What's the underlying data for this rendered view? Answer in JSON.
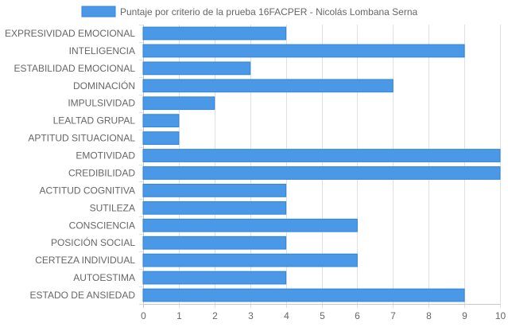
{
  "colors": {
    "bar_fill": "#4a98e6",
    "bar_stroke": "#2f86dc",
    "grid": "#e0e0e0",
    "axis": "#c8c8c8",
    "text": "#666666"
  },
  "chart_data": {
    "type": "bar",
    "orientation": "horizontal",
    "title": "",
    "xlabel": "",
    "ylabel": "",
    "xlim": [
      0,
      10
    ],
    "x_ticks": [
      "0",
      "1",
      "2",
      "3",
      "4",
      "5",
      "6",
      "7",
      "8",
      "9",
      "10"
    ],
    "grid": true,
    "legend_position": "top",
    "categories": [
      "EXPRESIVIDAD EMOCIONAL",
      "INTELIGENCIA",
      "ESTABILIDAD EMOCIONAL",
      "DOMINACIÓN",
      "IMPULSIVIDAD",
      "LEALTAD GRUPAL",
      "APTITUD SITUACIONAL",
      "EMOTIVIDAD",
      "CREDIBILIDAD",
      "ACTITUD COGNITIVA",
      "SUTILEZA",
      "CONSCIENCIA",
      "POSICIÓN SOCIAL",
      "CERTEZA INDIVIDUAL",
      "AUTOESTIMA",
      "ESTADO DE ANSIEDAD"
    ],
    "series": [
      {
        "name": "Puntaje por criterio de la prueba 16FACPER - Nicolás Lombana Serna",
        "values": [
          4,
          9,
          3,
          7,
          2,
          1,
          1,
          10,
          10,
          4,
          4,
          6,
          4,
          6,
          4,
          9
        ]
      }
    ]
  }
}
